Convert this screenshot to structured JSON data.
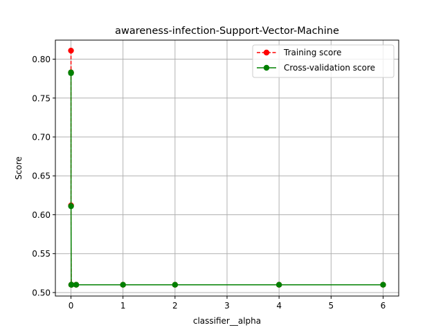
{
  "chart_data": {
    "type": "line",
    "title": "awareness-infection-Support-Vector-Machine",
    "xlabel": "classifier__alpha",
    "ylabel": "Score",
    "xlim": [
      -0.3,
      6.3
    ],
    "ylim": [
      0.4955,
      0.8245
    ],
    "xticks": [
      0,
      1,
      2,
      3,
      4,
      5,
      6
    ],
    "xtick_labels": [
      "0",
      "1",
      "2",
      "3",
      "4",
      "5",
      "6"
    ],
    "yticks": [
      0.5,
      0.55,
      0.6,
      0.65,
      0.7,
      0.75,
      0.8
    ],
    "ytick_labels": [
      "0.50",
      "0.55",
      "0.60",
      "0.65",
      "0.70",
      "0.75",
      "0.80"
    ],
    "grid": true,
    "legend_position": "top-right",
    "series": [
      {
        "name": "Training score",
        "color": "#ff0000",
        "line_style": "dashed",
        "marker": "circle",
        "x": [
          0.0001,
          0.0005,
          0.001,
          0.005,
          0.01,
          0.1,
          1,
          2,
          4,
          6
        ],
        "y": [
          0.811,
          0.783,
          0.612,
          0.51,
          0.51,
          0.51,
          0.51,
          0.51,
          0.51,
          0.51
        ]
      },
      {
        "name": "Cross-validation score",
        "color": "#008000",
        "line_style": "solid",
        "marker": "circle",
        "x": [
          0.0001,
          0.0005,
          0.001,
          0.005,
          0.01,
          0.1,
          1,
          2,
          4,
          6
        ],
        "y": [
          0.783,
          0.782,
          0.611,
          0.51,
          0.51,
          0.51,
          0.51,
          0.51,
          0.51,
          0.51
        ]
      }
    ]
  }
}
